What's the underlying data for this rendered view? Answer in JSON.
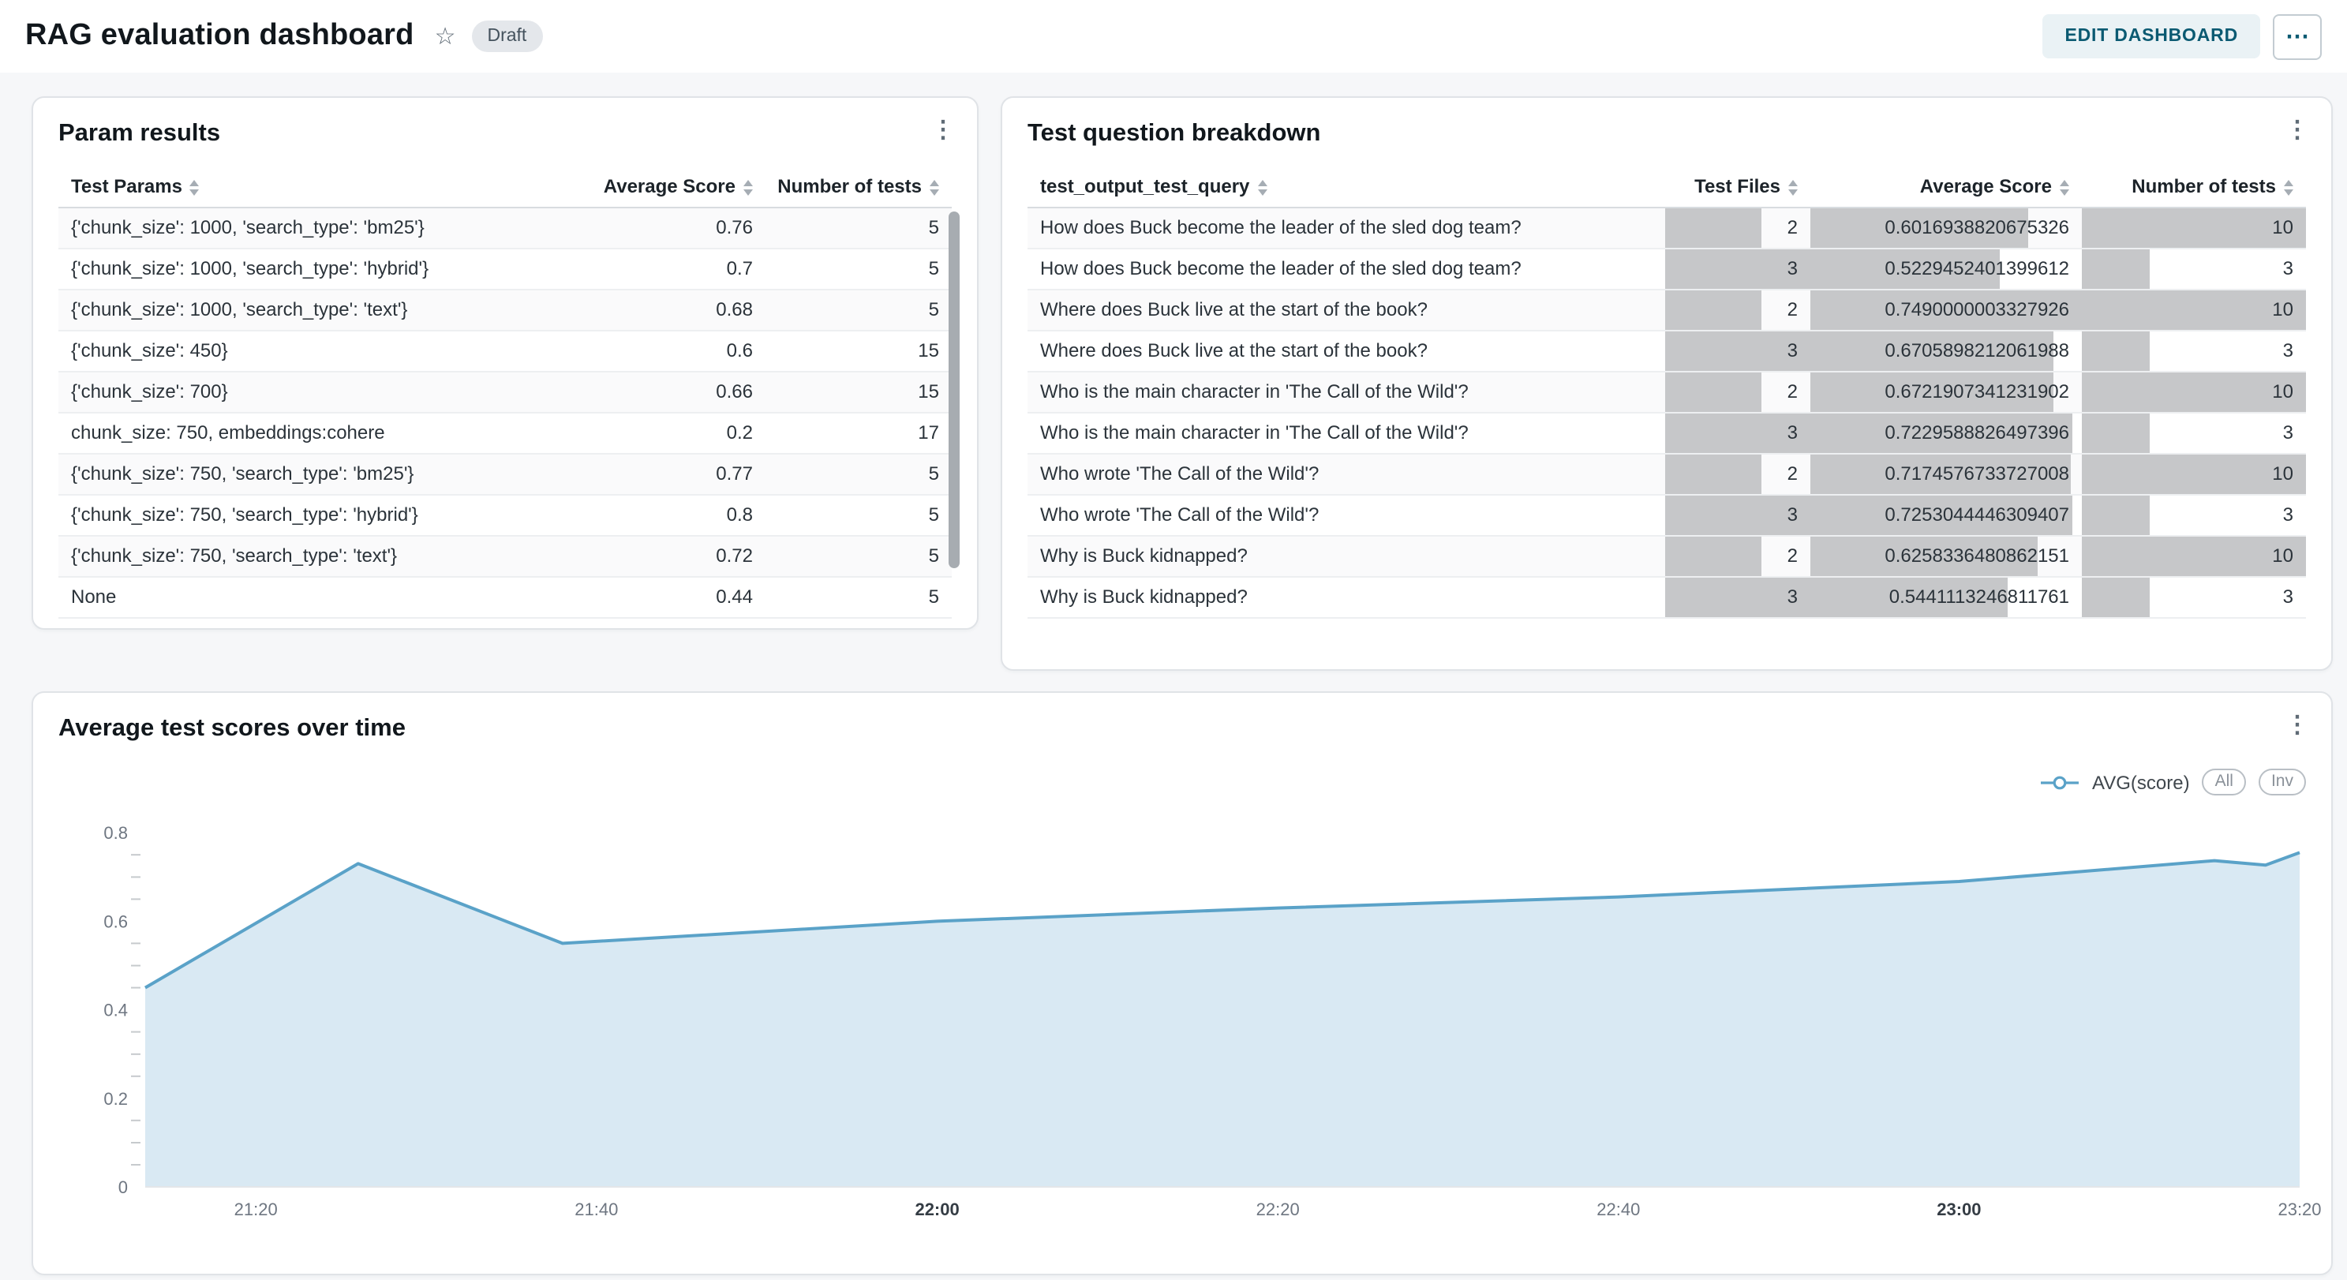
{
  "header": {
    "title": "RAG evaluation dashboard",
    "status_badge": "Draft",
    "edit_button": "EDIT DASHBOARD"
  },
  "icons": {
    "star": "☆",
    "kebab": "⋮",
    "more": "⋯"
  },
  "param_results": {
    "title": "Param results",
    "columns": [
      "Test Params",
      "Average Score",
      "Number of tests"
    ],
    "rows": [
      [
        "{'chunk_size': 1000, 'search_type': 'bm25'}",
        "0.76",
        "5"
      ],
      [
        "{'chunk_size': 1000, 'search_type': 'hybrid'}",
        "0.7",
        "5"
      ],
      [
        "{'chunk_size': 1000, 'search_type': 'text'}",
        "0.68",
        "5"
      ],
      [
        "{'chunk_size': 450}",
        "0.6",
        "15"
      ],
      [
        "{'chunk_size': 700}",
        "0.66",
        "15"
      ],
      [
        "chunk_size: 750, embeddings:cohere",
        "0.2",
        "17"
      ],
      [
        "{'chunk_size': 750, 'search_type': 'bm25'}",
        "0.77",
        "5"
      ],
      [
        "{'chunk_size': 750, 'search_type': 'hybrid'}",
        "0.8",
        "5"
      ],
      [
        "{'chunk_size': 750, 'search_type': 'text'}",
        "0.72",
        "5"
      ],
      [
        "None",
        "0.44",
        "5"
      ]
    ]
  },
  "question_breakdown": {
    "title": "Test question breakdown",
    "columns": [
      "test_output_test_query",
      "Test Files",
      "Average Score",
      "Number of tests"
    ],
    "bar_color": "#c6c7c9",
    "rows": [
      {
        "query": "How does Buck become the leader of the sled dog team?",
        "files": 2,
        "score": "0.6016938820675326",
        "tests": 10
      },
      {
        "query": "How does Buck become the leader of the sled dog team?",
        "files": 3,
        "score": "0.5229452401399612",
        "tests": 3
      },
      {
        "query": "Where does Buck live at the start of the book?",
        "files": 2,
        "score": "0.7490000003327926",
        "tests": 10
      },
      {
        "query": "Where does Buck live at the start of the book?",
        "files": 3,
        "score": "0.6705898212061988",
        "tests": 3
      },
      {
        "query": "Who is the main character in 'The Call of the Wild'?",
        "files": 2,
        "score": "0.6721907341231902",
        "tests": 10
      },
      {
        "query": "Who is the main character in 'The Call of the Wild'?",
        "files": 3,
        "score": "0.7229588826497396",
        "tests": 3
      },
      {
        "query": "Who wrote 'The Call of the Wild'?",
        "files": 2,
        "score": "0.7174576733727008",
        "tests": 10
      },
      {
        "query": "Who wrote 'The Call of the Wild'?",
        "files": 3,
        "score": "0.7253044446309407",
        "tests": 3
      },
      {
        "query": "Why is Buck kidnapped?",
        "files": 2,
        "score": "0.6258336480862151",
        "tests": 10
      },
      {
        "query": "Why is Buck kidnapped?",
        "files": 3,
        "score": "0.5441113246811761",
        "tests": 3
      }
    ]
  },
  "chart_card": {
    "title": "Average test scores over time",
    "legend": {
      "series_label": "AVG(score)",
      "buttons": [
        "All",
        "Inv"
      ]
    }
  },
  "chart_data": {
    "type": "area",
    "title": "Average test scores over time",
    "series": [
      {
        "name": "AVG(score)",
        "points": [
          {
            "t": "21:14",
            "m": 13.5,
            "v": 0.45
          },
          {
            "t": "21:26",
            "m": 26,
            "v": 0.73
          },
          {
            "t": "21:38",
            "m": 38,
            "v": 0.55
          },
          {
            "t": "22:00",
            "m": 60,
            "v": 0.6
          },
          {
            "t": "22:20",
            "m": 80,
            "v": 0.63
          },
          {
            "t": "22:40",
            "m": 100,
            "v": 0.655
          },
          {
            "t": "23:00",
            "m": 120,
            "v": 0.69
          },
          {
            "t": "23:15",
            "m": 135,
            "v": 0.737
          },
          {
            "t": "23:18",
            "m": 138,
            "v": 0.727
          },
          {
            "t": "23:20",
            "m": 140,
            "v": 0.755
          }
        ]
      }
    ],
    "x_ticks": [
      {
        "minute": 20,
        "label": "21:20",
        "bold": false
      },
      {
        "minute": 40,
        "label": "21:40",
        "bold": false
      },
      {
        "minute": 60,
        "label": "22:00",
        "bold": true
      },
      {
        "minute": 80,
        "label": "22:20",
        "bold": false
      },
      {
        "minute": 100,
        "label": "22:40",
        "bold": false
      },
      {
        "minute": 120,
        "label": "23:00",
        "bold": true
      },
      {
        "minute": 140,
        "label": "23:20",
        "bold": false
      }
    ],
    "xlim_minutes": [
      13.5,
      140
    ],
    "y_ticks": [
      0,
      0.2,
      0.4,
      0.6,
      0.8
    ],
    "y_minor_step": 0.05,
    "ylim": [
      0,
      0.82
    ],
    "line_color": "#5aa2c8",
    "fill_color": "#d9e9f3",
    "grid": false,
    "legend_position": "top-right"
  }
}
